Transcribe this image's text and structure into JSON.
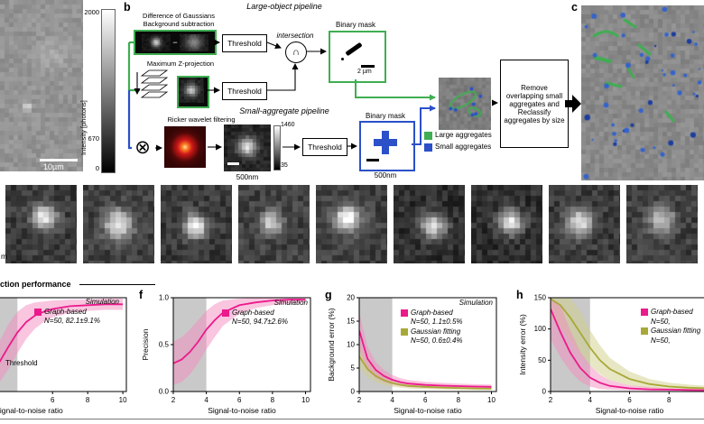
{
  "panel_a": {
    "colorbar_max": "2000",
    "colorbar_mid": "670",
    "colorbar_min": "0",
    "colorbar_label": "Intensity [photons]",
    "scalebar_label": "10µm"
  },
  "panel_b": {
    "label": "b",
    "large_pipeline_title": "Large-object pipeline",
    "small_pipeline_title": "Small-aggregate pipeline",
    "dog_label_line1": "Difference of Gaussians",
    "dog_label_line2": "Background subtraction",
    "minus_sign": "−",
    "maxz_label": "Maximum Z-projection",
    "threshold_label_1": "Threshold",
    "threshold_label_2": "Threshold",
    "threshold_label_3": "Threshold",
    "intersection_label": "intersection",
    "intersection_symbol": "∩",
    "convolution_symbol": "⊗",
    "binary_mask_large_label": "Binary mask",
    "binary_mask_large_scale": "2 µm",
    "ricker_label": "Ricker wavelet filtering",
    "spot_scalebar_label": "500nm",
    "spot_colorbar_max": "1460",
    "spot_colorbar_min": "35",
    "binary_mask_small_label": "Binary mask",
    "binary_mask_small_scale": "500nm",
    "legend_large_label": "Large aggregates",
    "legend_small_label": "Small aggregates",
    "remove_box_text": "Remove overlapping small aggregates and Reclassify aggregates by size",
    "large_color": "#3fae52",
    "small_color": "#2b50c8"
  },
  "panel_c": {
    "label": "c"
  },
  "gallery": {
    "scale_partial_label": "m",
    "tile_count": 9
  },
  "performance": {
    "section_header": "ction performance",
    "accent_magenta": "#ec1a8c",
    "accent_olive": "#a8a838",
    "e": {
      "legend_sim": "Simulation",
      "legend_graph": "Graph-based",
      "legend_graph_stats": "N=50, 82.1±9.1%",
      "annotation": "Threshold"
    },
    "f": {
      "letter": "f",
      "legend_sim": "Simulation",
      "legend_graph": "Graph-based",
      "legend_graph_stats": "N=50, 94.7±2.6%"
    },
    "g": {
      "letter": "g",
      "legend_sim": "Simulation",
      "legend_graph": "Graph-based",
      "legend_graph_stats": "N=50, 1.1±0.5%",
      "legend_gauss": "Gaussian fitting",
      "legend_gauss_stats": "N=50, 0.6±0.4%"
    },
    "h": {
      "letter": "h",
      "legend_graph": "Graph-based",
      "legend_graph_stats": "N=50,",
      "legend_gauss": "Gaussian fitting",
      "legend_gauss_stats": "N=50,"
    }
  },
  "chart_data": [
    {
      "dom_id": "chart-e",
      "panel": "e (partially cropped at left)",
      "type": "line",
      "xlabel": "Signal-to-noise ratio",
      "ylabel": "",
      "xlim": [
        2.6,
        10.2
      ],
      "ylim": [
        0,
        1
      ],
      "shaded_region": [
        2.6,
        4
      ],
      "xticks": [
        6,
        8,
        10
      ],
      "xtick_labels": [
        "6",
        "8",
        "10"
      ],
      "yticks": [],
      "ytick_labels": [],
      "series": [
        {
          "name": "Graph-based",
          "color": "#ec1a8c",
          "band_color": "#f48cc0",
          "x": [
            2.6,
            3,
            3.5,
            4,
            4.5,
            5,
            5.5,
            6,
            7,
            8,
            9,
            10
          ],
          "y": [
            0.22,
            0.32,
            0.48,
            0.63,
            0.74,
            0.81,
            0.85,
            0.88,
            0.91,
            0.92,
            0.93,
            0.93
          ],
          "low": [
            0.05,
            0.1,
            0.24,
            0.41,
            0.56,
            0.67,
            0.74,
            0.79,
            0.84,
            0.86,
            0.87,
            0.87
          ],
          "high": [
            0.42,
            0.54,
            0.72,
            0.85,
            0.92,
            0.95,
            0.96,
            0.97,
            0.98,
            0.98,
            0.99,
            0.99
          ]
        }
      ]
    },
    {
      "dom_id": "chart-f",
      "panel": "f",
      "type": "line",
      "xlabel": "Signal-to-noise ratio",
      "ylabel": "Precision",
      "xlim": [
        2,
        10.3
      ],
      "ylim": [
        0,
        1
      ],
      "shaded_region": [
        2,
        4
      ],
      "xticks": [
        2,
        4,
        6,
        8,
        10
      ],
      "xtick_labels": [
        "2",
        "4",
        "6",
        "8",
        "10"
      ],
      "yticks": [
        0,
        0.5,
        1
      ],
      "ytick_labels": [
        "0.0",
        "0.5",
        "1.0"
      ],
      "series": [
        {
          "name": "Graph-based",
          "color": "#ec1a8c",
          "band_color": "#f48cc0",
          "x": [
            2,
            2.5,
            3,
            3.5,
            4,
            4.5,
            5,
            6,
            7,
            8,
            9,
            10
          ],
          "y": [
            0.3,
            0.34,
            0.42,
            0.53,
            0.66,
            0.76,
            0.84,
            0.92,
            0.95,
            0.97,
            0.98,
            0.98
          ],
          "low": [
            0.07,
            0.1,
            0.18,
            0.3,
            0.45,
            0.58,
            0.7,
            0.83,
            0.89,
            0.92,
            0.94,
            0.95
          ],
          "high": [
            0.53,
            0.58,
            0.66,
            0.76,
            0.86,
            0.93,
            0.97,
            0.99,
            1.0,
            1.0,
            1.0,
            1.0
          ]
        }
      ]
    },
    {
      "dom_id": "chart-g",
      "panel": "g",
      "type": "line",
      "xlabel": "Signal-to-noise ratio",
      "ylabel": "Background error (%)",
      "xlim": [
        2,
        10.3
      ],
      "ylim": [
        0,
        20
      ],
      "shaded_region": [
        2,
        4
      ],
      "xticks": [
        2,
        4,
        6,
        8,
        10
      ],
      "xtick_labels": [
        "2",
        "4",
        "6",
        "8",
        "10"
      ],
      "yticks": [
        0,
        5,
        10,
        15,
        20
      ],
      "ytick_labels": [
        "0",
        "5",
        "10",
        "15",
        "20"
      ],
      "series": [
        {
          "name": "Gaussian fitting",
          "color": "#a8a838",
          "band_color": "#cfcf8a",
          "x": [
            2,
            2.5,
            3,
            3.5,
            4,
            4.5,
            5,
            6,
            7,
            8,
            9,
            10
          ],
          "y": [
            7.5,
            4.8,
            3.3,
            2.4,
            1.8,
            1.45,
            1.2,
            1.0,
            0.85,
            0.75,
            0.65,
            0.6
          ],
          "low": [
            5.0,
            3.0,
            2.0,
            1.4,
            1.0,
            0.8,
            0.65,
            0.5,
            0.42,
            0.36,
            0.3,
            0.3
          ],
          "high": [
            10.0,
            6.6,
            4.6,
            3.4,
            2.6,
            2.1,
            1.75,
            1.5,
            1.3,
            1.15,
            1.0,
            0.9
          ]
        },
        {
          "name": "Graph-based",
          "color": "#ec1a8c",
          "band_color": "#f48cc0",
          "x": [
            2,
            2.5,
            3,
            3.5,
            4,
            4.5,
            5,
            6,
            7,
            8,
            9,
            10
          ],
          "y": [
            13.0,
            7.0,
            4.6,
            3.3,
            2.5,
            2.0,
            1.7,
            1.4,
            1.25,
            1.15,
            1.05,
            1.0
          ],
          "low": [
            9.0,
            4.5,
            2.9,
            2.0,
            1.5,
            1.15,
            0.95,
            0.75,
            0.65,
            0.6,
            0.55,
            0.5
          ],
          "high": [
            17.0,
            9.6,
            6.3,
            4.6,
            3.5,
            2.85,
            2.45,
            2.05,
            1.85,
            1.7,
            1.55,
            1.5
          ]
        }
      ]
    },
    {
      "dom_id": "chart-h",
      "panel": "h (cropped at right)",
      "type": "line",
      "xlabel": "Signal-to-noise ratio",
      "ylabel": "Intensity error (%)",
      "xlim": [
        2,
        10
      ],
      "ylim": [
        0,
        150
      ],
      "shaded_region": [
        2,
        4
      ],
      "xticks": [
        2,
        4,
        6,
        8,
        10
      ],
      "xtick_labels": [
        "2",
        "4",
        "6",
        "8",
        "10"
      ],
      "yticks": [
        0,
        50,
        100,
        150
      ],
      "ytick_labels": [
        "0",
        "50",
        "100",
        "150"
      ],
      "series": [
        {
          "name": "Gaussian fitting",
          "color": "#a8a838",
          "band_color": "#cfcf8a",
          "x": [
            2,
            2.5,
            3,
            3.5,
            4,
            4.5,
            5,
            6,
            7,
            8,
            9,
            10
          ],
          "y": [
            148,
            138,
            118,
            94,
            70,
            50,
            36,
            20,
            12,
            8,
            6,
            5
          ],
          "low": [
            118,
            104,
            82,
            60,
            42,
            28,
            18,
            10,
            5,
            3,
            2,
            2
          ],
          "high": [
            150,
            150,
            150,
            128,
            98,
            74,
            54,
            32,
            20,
            14,
            11,
            9
          ]
        },
        {
          "name": "Graph-based",
          "color": "#ec1a8c",
          "band_color": "#f48cc0",
          "x": [
            2,
            2.5,
            3,
            3.5,
            4,
            4.5,
            5,
            6,
            7,
            8,
            9,
            10
          ],
          "y": [
            132,
            95,
            62,
            38,
            22,
            14,
            9,
            5,
            3.5,
            3,
            2.5,
            2
          ],
          "low": [
            84,
            55,
            32,
            16,
            8,
            4,
            3,
            2,
            1,
            1,
            1,
            1
          ],
          "high": [
            150,
            138,
            98,
            64,
            42,
            27,
            18,
            10,
            7,
            5,
            4,
            4
          ]
        }
      ]
    }
  ]
}
